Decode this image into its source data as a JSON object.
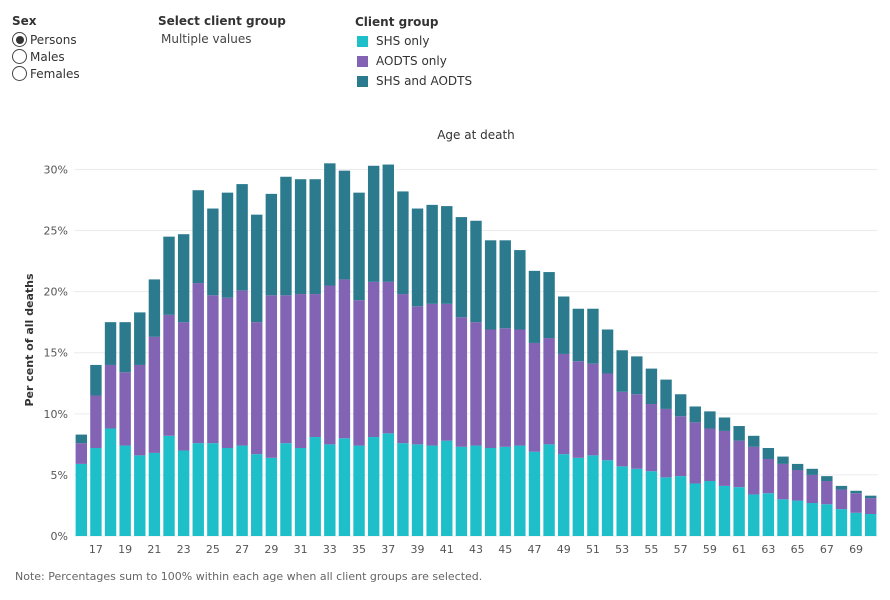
{
  "controls": {
    "sex_title": "Sex",
    "sex_options": [
      {
        "label": "Persons",
        "selected": true
      },
      {
        "label": "Males",
        "selected": false
      },
      {
        "label": "Females",
        "selected": false
      }
    ],
    "client_select_title": "Select client group",
    "client_select_value": "Multiple values",
    "legend_title": "Client group"
  },
  "colors": {
    "shs_only": "#1fbfc9",
    "aodts_only": "#8263b4",
    "shs_and_aodts": "#2b7a8e"
  },
  "chart_data": {
    "type": "bar",
    "stacked": true,
    "title": "Age at death",
    "ylabel": "Per cent of all deaths",
    "ylim": [
      0,
      32
    ],
    "yticks": [
      0,
      5,
      10,
      15,
      20,
      25,
      30
    ],
    "ytick_labels": [
      "0%",
      "5%",
      "10%",
      "15%",
      "20%",
      "25%",
      "30%"
    ],
    "grid": true,
    "legend_placement": "top",
    "categories": [
      16,
      17,
      18,
      19,
      20,
      21,
      22,
      23,
      24,
      25,
      26,
      27,
      28,
      29,
      30,
      31,
      32,
      33,
      34,
      35,
      36,
      37,
      38,
      39,
      40,
      41,
      42,
      43,
      44,
      45,
      46,
      47,
      48,
      49,
      50,
      51,
      52,
      53,
      54,
      55,
      56,
      57,
      58,
      59,
      60,
      61,
      62,
      63,
      64,
      65,
      66,
      67,
      68,
      69,
      70
    ],
    "xtick_labels": [
      "17",
      "19",
      "21",
      "23",
      "25",
      "27",
      "29",
      "31",
      "33",
      "35",
      "37",
      "39",
      "41",
      "43",
      "45",
      "47",
      "49",
      "51",
      "53",
      "55",
      "57",
      "59",
      "61",
      "63",
      "65",
      "67",
      "69"
    ],
    "series": [
      {
        "name": "SHS only",
        "values": [
          5.9,
          7.2,
          8.8,
          7.4,
          6.6,
          6.8,
          8.2,
          7.0,
          7.6,
          7.6,
          7.2,
          7.4,
          6.7,
          6.4,
          7.6,
          7.2,
          8.1,
          7.5,
          8.0,
          7.4,
          8.1,
          8.4,
          7.6,
          7.5,
          7.4,
          7.8,
          7.3,
          7.4,
          7.2,
          7.3,
          7.4,
          6.9,
          7.5,
          6.7,
          6.4,
          6.6,
          6.2,
          5.7,
          5.5,
          5.3,
          4.8,
          4.9,
          4.3,
          4.5,
          4.1,
          4.0,
          3.4,
          3.5,
          3.0,
          2.9,
          2.7,
          2.6,
          2.2,
          1.9,
          1.8
        ]
      },
      {
        "name": "AODTS only",
        "values": [
          1.7,
          4.3,
          5.2,
          6.0,
          7.4,
          9.5,
          9.9,
          10.5,
          13.1,
          12.1,
          12.3,
          12.7,
          10.8,
          13.3,
          12.1,
          12.6,
          11.7,
          13.0,
          13.0,
          11.9,
          12.7,
          12.4,
          12.2,
          11.3,
          11.6,
          11.2,
          10.6,
          10.1,
          9.7,
          9.7,
          9.5,
          8.9,
          8.7,
          8.2,
          7.9,
          7.5,
          7.1,
          6.1,
          6.1,
          5.5,
          5.6,
          4.9,
          5.0,
          4.3,
          4.5,
          3.8,
          3.9,
          2.8,
          2.9,
          2.5,
          2.3,
          1.9,
          1.6,
          1.6,
          1.3
        ]
      },
      {
        "name": "SHS and AODTS",
        "values": [
          0.7,
          2.5,
          3.5,
          4.1,
          4.3,
          4.7,
          6.4,
          7.2,
          7.6,
          7.1,
          8.6,
          8.7,
          8.8,
          8.3,
          9.7,
          9.4,
          9.4,
          10.0,
          8.9,
          8.8,
          9.5,
          9.6,
          8.4,
          8.0,
          8.1,
          8.0,
          8.2,
          8.3,
          7.3,
          7.2,
          6.5,
          5.9,
          5.4,
          4.7,
          4.3,
          4.5,
          3.6,
          3.4,
          3.1,
          2.9,
          2.4,
          1.8,
          1.3,
          1.4,
          1.1,
          1.2,
          0.9,
          0.9,
          0.6,
          0.5,
          0.5,
          0.4,
          0.3,
          0.2,
          0.2
        ]
      }
    ]
  },
  "note": "Note: Percentages sum to 100% within each age when all client groups are selected."
}
